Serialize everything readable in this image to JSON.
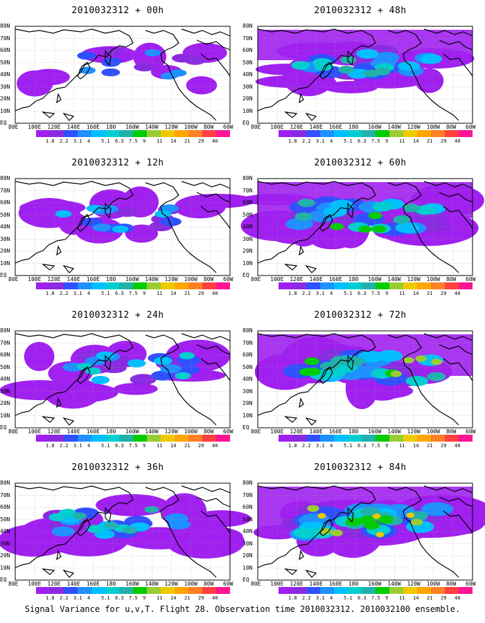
{
  "panels": [
    {
      "title": "2010032312 + 00h",
      "intensity": 0.15
    },
    {
      "title": "2010032312 + 48h",
      "intensity": 0.55
    },
    {
      "title": "2010032312 + 12h",
      "intensity": 0.25
    },
    {
      "title": "2010032312 + 60h",
      "intensity": 0.65
    },
    {
      "title": "2010032312 + 24h",
      "intensity": 0.35
    },
    {
      "title": "2010032312 + 72h",
      "intensity": 0.75
    },
    {
      "title": "2010032312 + 36h",
      "intensity": 0.45
    },
    {
      "title": "2010032312 + 84h",
      "intensity": 0.85
    }
  ],
  "lat_labels": [
    "80N",
    "70N",
    "60N",
    "50N",
    "40N",
    "30N",
    "20N",
    "10N",
    "EQ"
  ],
  "lon_labels": [
    "80E",
    "100E",
    "120E",
    "140E",
    "160E",
    "180",
    "160W",
    "140W",
    "120W",
    "100W",
    "80W",
    "60W"
  ],
  "colorbar": {
    "colors": [
      "#a020f0",
      "#8a2be2",
      "#3050ff",
      "#1e90ff",
      "#00bfff",
      "#00ced1",
      "#20b2aa",
      "#00cd00",
      "#9acd32",
      "#eec900",
      "#ffa500",
      "#ff7f24",
      "#ff4040",
      "#ff1493"
    ],
    "labels": [
      "1.8",
      "2.2",
      "3.1",
      "4",
      "5.1",
      "6.3",
      "7.5",
      "9",
      "11",
      "14",
      "21",
      "29",
      "40"
    ]
  },
  "caption": "Signal Variance for u,v,T. Flight 28. Observation time 2010032312. 2010032100 ensemble."
}
